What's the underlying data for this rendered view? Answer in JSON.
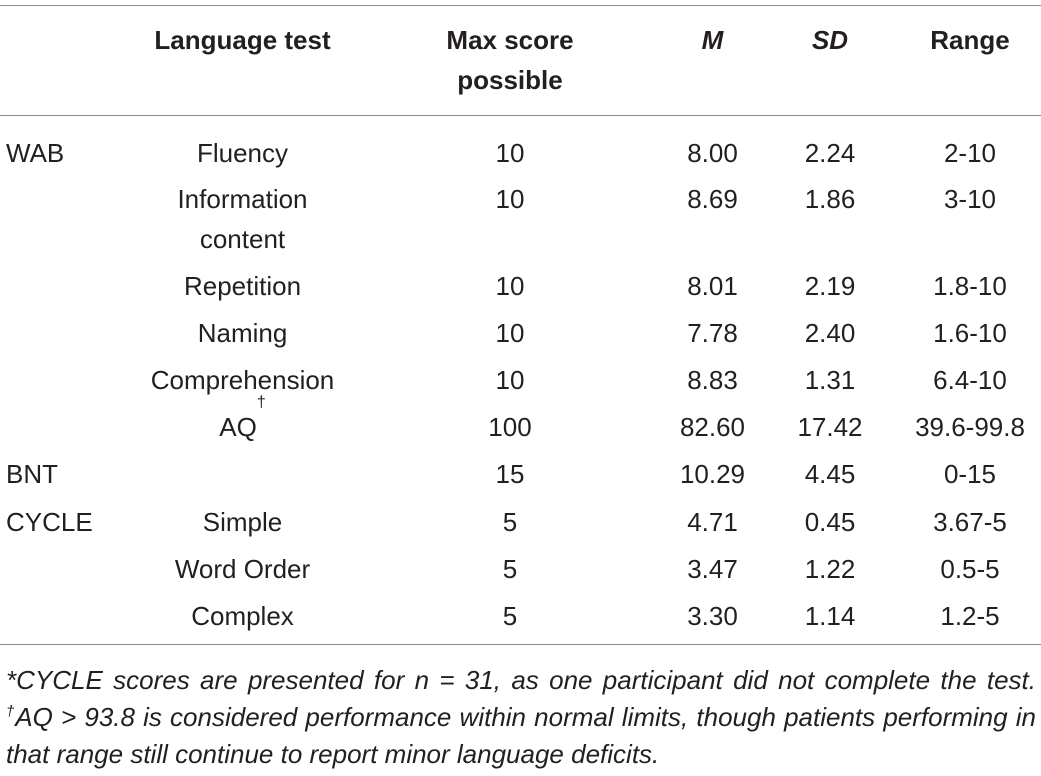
{
  "header": {
    "language_test": "Language test",
    "max_score_line1": "Max score",
    "max_score_line2": "possible",
    "mean": "M",
    "sd": "SD",
    "range": "Range"
  },
  "rows": [
    {
      "group": "WAB",
      "test": "Fluency",
      "max": "10",
      "m": "8.00",
      "sd": "2.24",
      "range": "2-10"
    },
    {
      "group": "",
      "test": "Information",
      "test_line2": "content",
      "max": "10",
      "m": "8.69",
      "sd": "1.86",
      "range": "3-10"
    },
    {
      "group": "",
      "test": "Repetition",
      "max": "10",
      "m": "8.01",
      "sd": "2.19",
      "range": "1.8-10"
    },
    {
      "group": "",
      "test": "Naming",
      "max": "10",
      "m": "7.78",
      "sd": "2.40",
      "range": "1.6-10"
    },
    {
      "group": "",
      "test": "Comprehension",
      "max": "10",
      "m": "8.83",
      "sd": "1.31",
      "range": "6.4-10"
    },
    {
      "group": "",
      "test": "AQ",
      "test_sup": "†",
      "max": "100",
      "m": "82.60",
      "sd": "17.42",
      "range": "39.6-99.8"
    },
    {
      "group": "BNT",
      "test": "",
      "max": "15",
      "m": "10.29",
      "sd": "4.45",
      "range": "0-15"
    },
    {
      "group": "CYCLE",
      "test": "Simple",
      "max": "5",
      "m": "4.71",
      "sd": "0.45",
      "range": "3.67-5"
    },
    {
      "group": "",
      "test": "Word Order",
      "max": "5",
      "m": "3.47",
      "sd": "1.22",
      "range": "0.5-5"
    },
    {
      "group": "",
      "test": "Complex",
      "max": "5",
      "m": "3.30",
      "sd": "1.14",
      "range": "1.2-5"
    }
  ],
  "footnote": {
    "part1": "*CYCLE scores are presented for n = 31, as one participant did not complete the test. ",
    "dagger": "†",
    "part2": "AQ > 93.8 is considered performance within normal limits, though patients performing in that range still continue to report minor language deficits."
  }
}
